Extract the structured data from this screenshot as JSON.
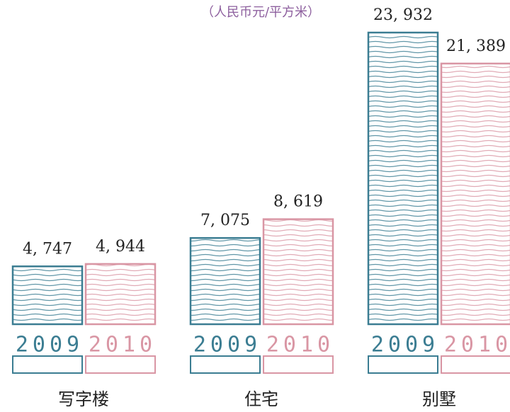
{
  "chart_data": {
    "type": "bar",
    "subtitle": "（人民币元/平方米）",
    "categories": [
      "写字楼",
      "住宅",
      "别墅"
    ],
    "series": [
      {
        "name": "2009",
        "color": "#3b7d92",
        "values": [
          4747,
          7075,
          23932
        ],
        "value_labels": [
          "4, 747",
          "7, 075",
          "23, 932"
        ]
      },
      {
        "name": "2010",
        "color": "#d996a4",
        "values": [
          4944,
          8619,
          21389
        ],
        "value_labels": [
          "4, 944",
          "8, 619",
          "21, 389"
        ]
      }
    ]
  }
}
